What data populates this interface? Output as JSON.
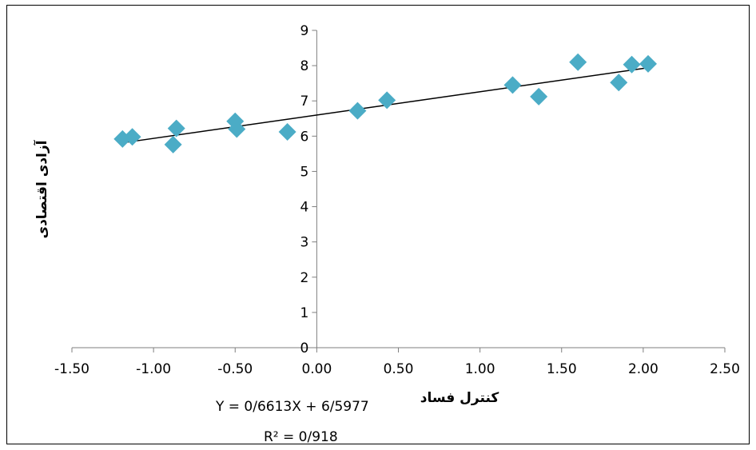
{
  "chart_data": {
    "type": "scatter",
    "title": "",
    "xlabel": "کنترل فساد",
    "ylabel": "آزادی اقتصادی",
    "xlim": [
      -1.5,
      2.5
    ],
    "ylim": [
      0,
      9
    ],
    "x_ticks": [
      "-1.50",
      "-1.00",
      "-0.50",
      "0.00",
      "0.50",
      "1.00",
      "1.50",
      "2.00",
      "2.50"
    ],
    "y_ticks": [
      "0",
      "1",
      "2",
      "3",
      "4",
      "5",
      "6",
      "7",
      "8",
      "9"
    ],
    "grid": false,
    "marker_color": "#4BACC6",
    "points": [
      {
        "x": -1.19,
        "y": 5.92
      },
      {
        "x": -1.13,
        "y": 5.98
      },
      {
        "x": -0.88,
        "y": 5.76
      },
      {
        "x": -0.86,
        "y": 6.22
      },
      {
        "x": -0.5,
        "y": 6.42
      },
      {
        "x": -0.49,
        "y": 6.2
      },
      {
        "x": -0.18,
        "y": 6.12
      },
      {
        "x": 0.25,
        "y": 6.72
      },
      {
        "x": 0.43,
        "y": 7.02
      },
      {
        "x": 1.2,
        "y": 7.45
      },
      {
        "x": 1.36,
        "y": 7.12
      },
      {
        "x": 1.6,
        "y": 8.1
      },
      {
        "x": 1.85,
        "y": 7.52
      },
      {
        "x": 1.93,
        "y": 8.03
      },
      {
        "x": 2.03,
        "y": 8.05
      }
    ],
    "trendline": {
      "type": "linear",
      "slope": 0.6613,
      "intercept": 6.5977,
      "x_range": [
        -1.19,
        2.03
      ],
      "equation_label": "Y = 0/6613X + 6/5977",
      "r2_label": "R² = 0/918"
    }
  }
}
